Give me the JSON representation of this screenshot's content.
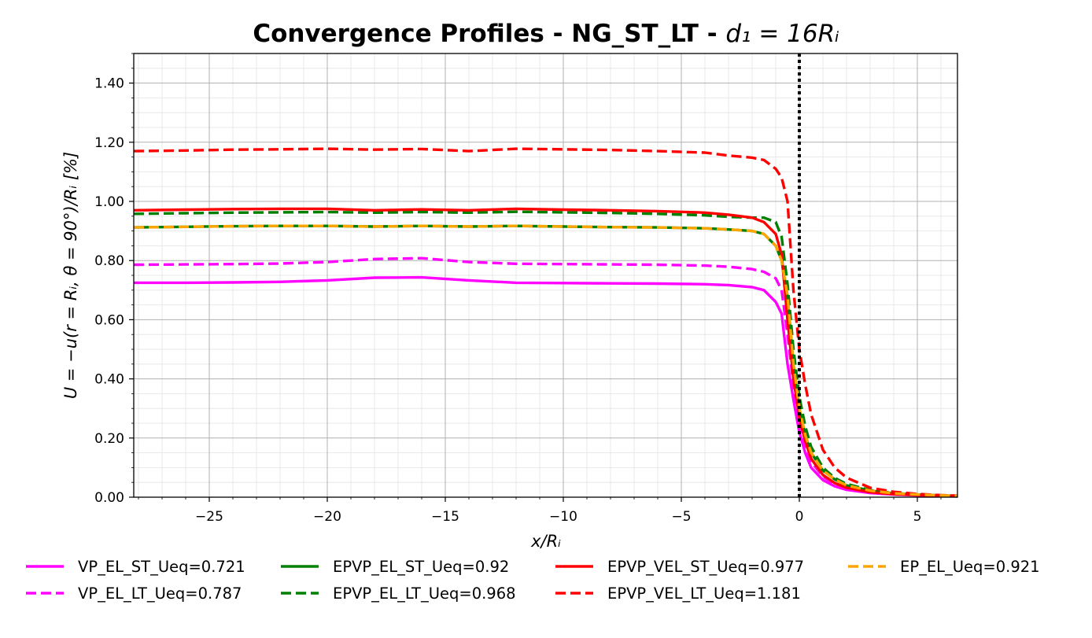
{
  "chart_data": {
    "type": "line",
    "title": "Convergence Profiles - NG_ST_LT - ",
    "title_math": "d₁ = 16Rᵢ",
    "xlabel": "x/Rᵢ",
    "ylabel": "U = −u(r = Rᵢ, θ = 90°)/Rᵢ [%]",
    "xlim": [
      -28.2,
      6.7
    ],
    "ylim": [
      0,
      1.5
    ],
    "x_ticks": [
      -25,
      -20,
      -15,
      -10,
      -5,
      0,
      5
    ],
    "x_tick_labels": [
      "−25",
      "−20",
      "−15",
      "−10",
      "−5",
      "0",
      "5"
    ],
    "y_ticks": [
      0,
      0.2,
      0.4,
      0.6,
      0.8,
      1.0,
      1.2,
      1.4
    ],
    "y_tick_labels": [
      "0.00",
      "0.20",
      "0.40",
      "0.60",
      "0.80",
      "1.00",
      "1.20",
      "1.40"
    ],
    "grid": true,
    "minor_grid": true,
    "vertical_reference_line": 0,
    "legend_placement": "below",
    "x": [
      -28.2,
      -26,
      -24,
      -22,
      -20,
      -18,
      -16,
      -14,
      -12,
      -10,
      -8,
      -6,
      -4,
      -3,
      -2,
      -1.5,
      -1,
      -0.75,
      -0.5,
      -0.25,
      0,
      0.25,
      0.5,
      1,
      1.5,
      2,
      3,
      4,
      5,
      6,
      6.7
    ],
    "series": [
      {
        "name": "VP_EL_ST_Ueq=0.721",
        "color": "#ff00ff",
        "style": "solid",
        "values": [
          0.725,
          0.725,
          0.726,
          0.728,
          0.733,
          0.742,
          0.743,
          0.733,
          0.725,
          0.724,
          0.723,
          0.722,
          0.72,
          0.717,
          0.71,
          0.7,
          0.66,
          0.62,
          0.45,
          0.33,
          0.22,
          0.15,
          0.1,
          0.058,
          0.037,
          0.025,
          0.014,
          0.009,
          0.006,
          0.004,
          0.003
        ]
      },
      {
        "name": "VP_EL_LT_Ueq=0.787",
        "color": "#ff00ff",
        "style": "dashed",
        "values": [
          0.786,
          0.787,
          0.788,
          0.79,
          0.795,
          0.805,
          0.808,
          0.795,
          0.789,
          0.788,
          0.787,
          0.786,
          0.783,
          0.779,
          0.771,
          0.762,
          0.74,
          0.7,
          0.55,
          0.38,
          0.26,
          0.18,
          0.12,
          0.07,
          0.045,
          0.03,
          0.016,
          0.01,
          0.007,
          0.005,
          0.003
        ]
      },
      {
        "name": "EPVP_EL_ST_Ueq=0.92",
        "color": "#008000",
        "style": "solid",
        "values": [
          0.912,
          0.914,
          0.916,
          0.917,
          0.917,
          0.915,
          0.917,
          0.915,
          0.917,
          0.915,
          0.913,
          0.912,
          0.909,
          0.905,
          0.9,
          0.89,
          0.85,
          0.8,
          0.68,
          0.45,
          0.3,
          0.21,
          0.15,
          0.09,
          0.06,
          0.04,
          0.022,
          0.013,
          0.009,
          0.006,
          0.004
        ]
      },
      {
        "name": "EPVP_EL_LT_Ueq=0.968",
        "color": "#008000",
        "style": "dashed",
        "values": [
          0.958,
          0.96,
          0.962,
          0.963,
          0.964,
          0.962,
          0.964,
          0.962,
          0.965,
          0.963,
          0.961,
          0.958,
          0.953,
          0.948,
          0.945,
          0.945,
          0.93,
          0.88,
          0.72,
          0.5,
          0.34,
          0.24,
          0.17,
          0.1,
          0.065,
          0.045,
          0.024,
          0.014,
          0.009,
          0.006,
          0.004
        ]
      },
      {
        "name": "EPVP_VEL_ST_Ueq=0.977",
        "color": "#ff0000",
        "style": "solid",
        "values": [
          0.97,
          0.972,
          0.974,
          0.975,
          0.975,
          0.97,
          0.973,
          0.97,
          0.975,
          0.972,
          0.97,
          0.967,
          0.962,
          0.955,
          0.945,
          0.93,
          0.89,
          0.82,
          0.6,
          0.4,
          0.27,
          0.19,
          0.13,
          0.075,
          0.048,
          0.032,
          0.017,
          0.01,
          0.007,
          0.005,
          0.003
        ]
      },
      {
        "name": "EPVP_VEL_LT_Ueq=1.181",
        "color": "#ff0000",
        "style": "dashed",
        "values": [
          1.17,
          1.172,
          1.175,
          1.176,
          1.178,
          1.175,
          1.177,
          1.17,
          1.178,
          1.176,
          1.174,
          1.17,
          1.165,
          1.155,
          1.148,
          1.14,
          1.11,
          1.08,
          1.0,
          0.7,
          0.5,
          0.38,
          0.28,
          0.16,
          0.1,
          0.066,
          0.032,
          0.018,
          0.011,
          0.007,
          0.005
        ]
      },
      {
        "name": "EP_EL_Ueq=0.921",
        "color": "#ffa500",
        "style": "dashed",
        "values": [
          0.912,
          0.914,
          0.916,
          0.917,
          0.917,
          0.915,
          0.917,
          0.915,
          0.917,
          0.915,
          0.913,
          0.912,
          0.909,
          0.905,
          0.9,
          0.89,
          0.85,
          0.8,
          0.68,
          0.45,
          0.3,
          0.21,
          0.15,
          0.09,
          0.06,
          0.04,
          0.022,
          0.013,
          0.009,
          0.006,
          0.004
        ]
      }
    ]
  }
}
